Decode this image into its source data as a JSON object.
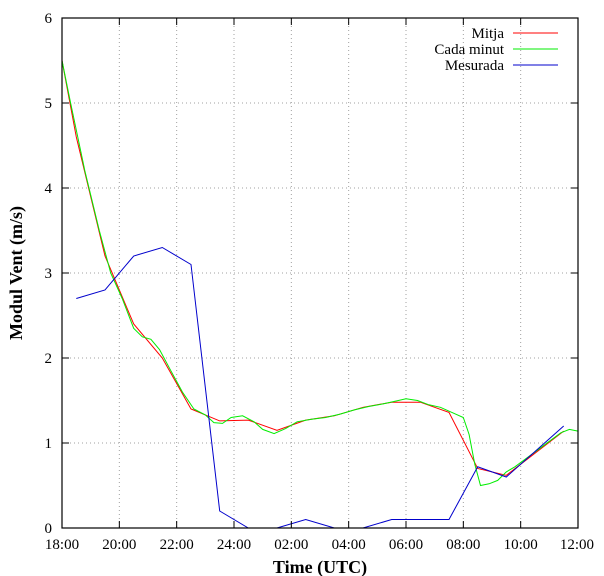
{
  "chart_data": {
    "type": "line",
    "xlabel": "Time (UTC)",
    "ylabel": "Modul Vent (m/s)",
    "xlim": [
      0,
      18
    ],
    "ylim": [
      0,
      6
    ],
    "x_tick_values": [
      0,
      2,
      4,
      6,
      8,
      10,
      12,
      14,
      16,
      18
    ],
    "x_tick_labels": [
      "18:00",
      "20:00",
      "22:00",
      "24:00",
      "02:00",
      "04:00",
      "06:00",
      "08:00",
      "10:00",
      "12:00"
    ],
    "y_ticks": [
      0,
      1,
      2,
      3,
      4,
      5,
      6
    ],
    "grid": true,
    "legend_position": "top-right",
    "series": [
      {
        "name": "Mitja",
        "color": "#ff0000",
        "points": [
          [
            0,
            5.5
          ],
          [
            0.5,
            4.6
          ],
          [
            1.5,
            3.2
          ],
          [
            2.5,
            2.4
          ],
          [
            3.5,
            2.0
          ],
          [
            4.5,
            1.4
          ],
          [
            5.5,
            1.26
          ],
          [
            6.5,
            1.27
          ],
          [
            7.5,
            1.15
          ],
          [
            8.5,
            1.27
          ],
          [
            9.5,
            1.32
          ],
          [
            10.5,
            1.42
          ],
          [
            11.5,
            1.48
          ],
          [
            12.5,
            1.48
          ],
          [
            13.5,
            1.36
          ],
          [
            14.5,
            0.7
          ],
          [
            15.5,
            0.62
          ],
          [
            16.5,
            0.88
          ],
          [
            17.5,
            1.14
          ]
        ]
      },
      {
        "name": "Cada minut",
        "color": "#00ee00",
        "points": [
          [
            0,
            5.5
          ],
          [
            0.3,
            5.0
          ],
          [
            0.8,
            4.2
          ],
          [
            1.3,
            3.5
          ],
          [
            1.7,
            3.0
          ],
          [
            2.1,
            2.7
          ],
          [
            2.5,
            2.35
          ],
          [
            2.8,
            2.25
          ],
          [
            3.1,
            2.22
          ],
          [
            3.4,
            2.1
          ],
          [
            3.8,
            1.85
          ],
          [
            4.2,
            1.6
          ],
          [
            4.6,
            1.4
          ],
          [
            5.0,
            1.33
          ],
          [
            5.3,
            1.24
          ],
          [
            5.6,
            1.23
          ],
          [
            5.9,
            1.3
          ],
          [
            6.3,
            1.32
          ],
          [
            6.7,
            1.25
          ],
          [
            7.0,
            1.16
          ],
          [
            7.4,
            1.11
          ],
          [
            7.8,
            1.17
          ],
          [
            8.2,
            1.25
          ],
          [
            8.7,
            1.28
          ],
          [
            9.2,
            1.3
          ],
          [
            9.7,
            1.34
          ],
          [
            10.2,
            1.39
          ],
          [
            10.7,
            1.43
          ],
          [
            11.2,
            1.46
          ],
          [
            11.6,
            1.49
          ],
          [
            12.0,
            1.52
          ],
          [
            12.4,
            1.5
          ],
          [
            12.8,
            1.45
          ],
          [
            13.2,
            1.42
          ],
          [
            13.6,
            1.36
          ],
          [
            14.0,
            1.3
          ],
          [
            14.2,
            1.1
          ],
          [
            14.4,
            0.75
          ],
          [
            14.6,
            0.5
          ],
          [
            14.9,
            0.52
          ],
          [
            15.2,
            0.56
          ],
          [
            15.5,
            0.66
          ],
          [
            15.8,
            0.72
          ],
          [
            16.2,
            0.82
          ],
          [
            16.6,
            0.92
          ],
          [
            17.0,
            1.02
          ],
          [
            17.4,
            1.12
          ],
          [
            17.7,
            1.16
          ],
          [
            18.0,
            1.14
          ]
        ]
      },
      {
        "name": "Mesurada",
        "color": "#0000cc",
        "points": [
          [
            0.5,
            2.7
          ],
          [
            1.5,
            2.8
          ],
          [
            2.5,
            3.2
          ],
          [
            3.5,
            3.3
          ],
          [
            4.5,
            3.1
          ],
          [
            5.5,
            0.2
          ],
          [
            6.5,
            0.0
          ],
          [
            7.5,
            0.0
          ],
          [
            8.5,
            0.1
          ],
          [
            9.5,
            0.0
          ],
          [
            10.5,
            0.0
          ],
          [
            11.5,
            0.1
          ],
          [
            12.5,
            0.1
          ],
          [
            13.5,
            0.1
          ],
          [
            14.5,
            0.72
          ],
          [
            15.5,
            0.6
          ],
          [
            16.5,
            0.9
          ],
          [
            17.5,
            1.2
          ]
        ]
      }
    ]
  }
}
